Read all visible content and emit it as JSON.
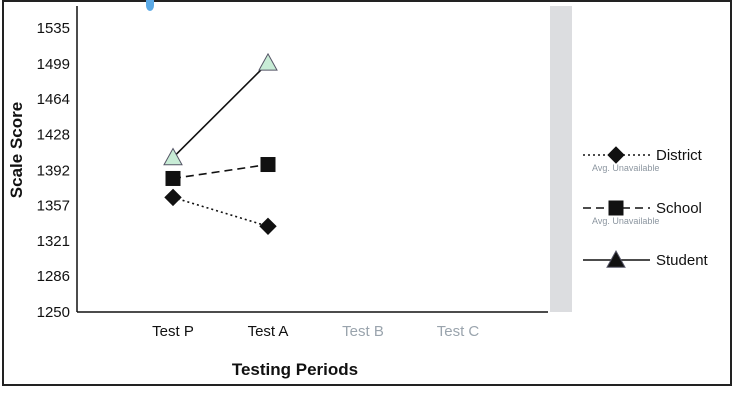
{
  "chart_data": {
    "type": "line",
    "title": "",
    "xlabel": "Testing Periods",
    "ylabel": "Scale Score",
    "categories": [
      "Test P",
      "Test A",
      "Test B",
      "Test C"
    ],
    "active_categories": [
      "Test P",
      "Test A"
    ],
    "inactive_categories": [
      "Test B",
      "Test C"
    ],
    "yticks": [
      "1535",
      "1499",
      "1464",
      "1428",
      "1392",
      "1357",
      "1321",
      "1286",
      "1250"
    ],
    "ylim": [
      1250,
      1535
    ],
    "grid": false,
    "legend_placement": "right",
    "series": [
      {
        "name": "District",
        "marker": "diamond",
        "line": "dotted",
        "note": "Avg. Unavailable",
        "values": [
          1365,
          1336,
          null,
          null
        ],
        "color": "#111111"
      },
      {
        "name": "School",
        "marker": "square",
        "line": "dashed",
        "note": "Avg. Unavailable",
        "values": [
          1384,
          1398,
          null,
          null
        ],
        "color": "#111111"
      },
      {
        "name": "Student",
        "marker": "triangle",
        "line": "solid",
        "note": "",
        "values": [
          1405,
          1500,
          null,
          null
        ],
        "color": "#111111",
        "marker_fill": "#c8ecd6"
      }
    ],
    "colors": {
      "axis": "#111111",
      "inactive_tick": "#9aa4ad",
      "band": "#dcdde0",
      "note": "#8c96a0"
    }
  }
}
